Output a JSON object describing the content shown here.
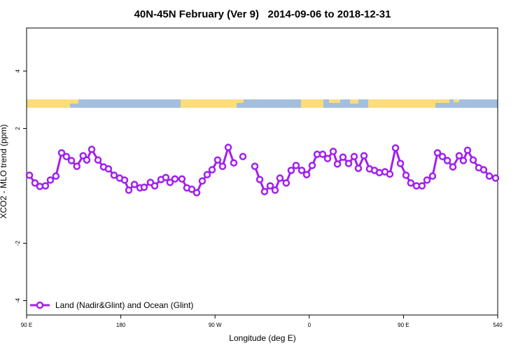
{
  "chart_data": {
    "type": "line",
    "title": "40N-45N February (Ver 9)   2014-09-06 to 2018-12-31",
    "x_label": "Longitude (deg E)",
    "y_label": "XCO2 - MLO trend (ppm)",
    "xlim": [
      90,
      540
    ],
    "ylim": [
      -4.5,
      5.5
    ],
    "xticks": [
      {
        "value": 90,
        "label": "90 E"
      },
      180,
      {
        "value": 270,
        "label": "90 W"
      },
      {
        "value": 360,
        "label": "0"
      },
      {
        "value": 450,
        "label": "90 E"
      },
      540
    ],
    "yticks": [
      -4,
      -2,
      2,
      4
    ],
    "legend_position": "bottom-left",
    "x": [
      92.7,
      98,
      102.7,
      108,
      112.7,
      118,
      123.4,
      128,
      132.8,
      138,
      144,
      147.5,
      152.2,
      158.2,
      163.5,
      168.2,
      173.6,
      178.9,
      183.6,
      187.6,
      193,
      198.3,
      202.3,
      208.3,
      212.4,
      218.4,
      223,
      227,
      231.7,
      238.4,
      243.1,
      247.8,
      252.5,
      257.8,
      262.5,
      267.2,
      272.5,
      277.2,
      282.6,
      287.9,
      292.3,
      296.6,
      302.3,
      308,
      312.7,
      317.3,
      322.7,
      327.4,
      332,
      338,
      342.7,
      347.4,
      352.8,
      357.5,
      362.8,
      367.5,
      372.8,
      377.5,
      382.9,
      386.9,
      392.2,
      397.6,
      402.9,
      406.9,
      412.3,
      417.6,
      422.3,
      427,
      432.3,
      437,
      442.4,
      447.1,
      452.4,
      457,
      462.4,
      467.7,
      472.5,
      477.8,
      482.5,
      487.2,
      491.9,
      497.2,
      503.2,
      507.2,
      511.2,
      516.6,
      521.9,
      526.6,
      532,
      538
    ],
    "series": [
      {
        "name": "Land (Nadir&Glint) and Ocean (Glint)",
        "color": "#a020f0",
        "values": [
          0.37,
          0.1,
          -0.02,
          0,
          0.2,
          0.34,
          1.15,
          1.02,
          0.88,
          0.68,
          1.05,
          0.9,
          1.27,
          0.9,
          0.66,
          0.59,
          0.37,
          0.27,
          0.2,
          -0.15,
          0.05,
          -0.07,
          -0.05,
          0.12,
          0,
          0.22,
          0.29,
          0.12,
          0.24,
          0.24,
          -0.07,
          -0.12,
          -0.24,
          0.17,
          0.39,
          0.56,
          0.9,
          0.68,
          1.34,
          0.8,
          null,
          1.02,
          null,
          0.68,
          0.22,
          -0.2,
          0,
          -0.15,
          0.27,
          0.1,
          0.54,
          0.71,
          0.54,
          0.39,
          0.71,
          1.1,
          1.1,
          0.95,
          1.2,
          0.76,
          1.0,
          0.78,
          1.02,
          0.61,
          1.05,
          0.59,
          0.54,
          0.46,
          0.49,
          0.41,
          1.32,
          0.78,
          0.37,
          0.1,
          0,
          0,
          0.2,
          0.34,
          1.15,
          1.02,
          0.88,
          0.66,
          1.05,
          0.88,
          1.24,
          0.9,
          0.63,
          0.56,
          0.34,
          0.27
        ]
      }
    ]
  }
}
